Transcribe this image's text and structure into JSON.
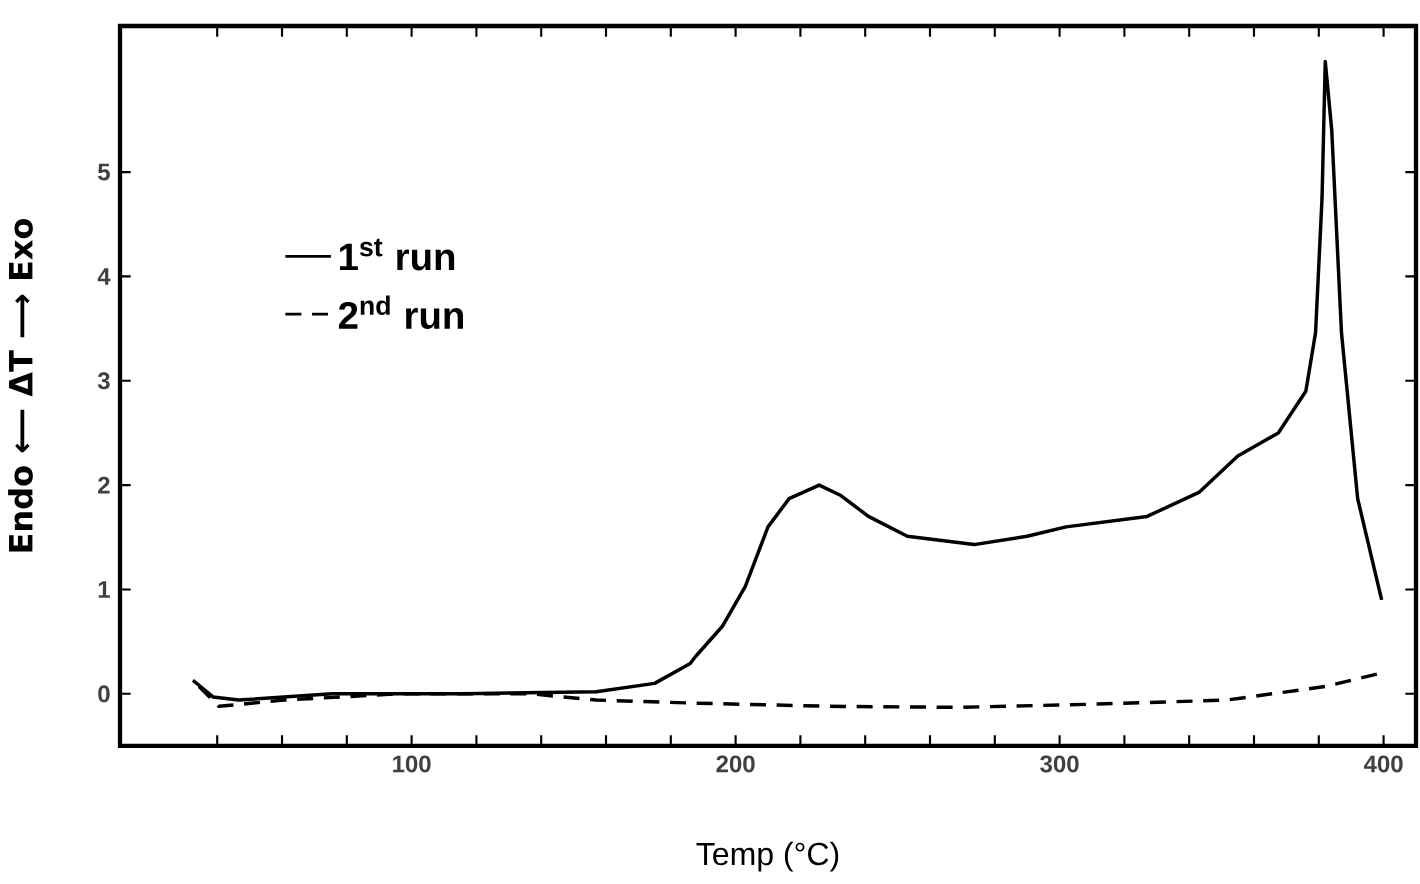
{
  "chart_data": {
    "type": "line",
    "xlabel": "Temp (°C)",
    "ylabel": "Endo ⟵ ΔT ⟶ Exo",
    "xlim": [
      10,
      410
    ],
    "ylim": [
      -0.5,
      6.4
    ],
    "xticks": [
      {
        "value": 40,
        "label": null
      },
      {
        "value": 60,
        "label": null
      },
      {
        "value": 80,
        "label": null
      },
      100,
      {
        "value": 120,
        "label": null
      },
      {
        "value": 140,
        "label": null
      },
      {
        "value": 160,
        "label": null
      },
      {
        "value": 180,
        "label": null
      },
      200,
      {
        "value": 220,
        "label": null
      },
      {
        "value": 240,
        "label": null
      },
      {
        "value": 260,
        "label": null
      },
      {
        "value": 280,
        "label": null
      },
      300,
      {
        "value": 320,
        "label": null
      },
      {
        "value": 340,
        "label": null
      },
      {
        "value": 360,
        "label": null
      },
      {
        "value": 380,
        "label": null
      },
      400
    ],
    "yticks": [
      0,
      1,
      2,
      3,
      4,
      5
    ],
    "grid": false,
    "legend": "top left",
    "series": [
      {
        "name": "1$^{st}$ run",
        "color": "#000000",
        "line_style": "solid",
        "x": [
          32.5,
          38.7,
          46.6,
          75.5,
          116,
          157,
          175,
          186,
          187.7,
          196,
          203,
          210,
          216.5,
          225.8,
          232.5,
          241,
          253,
          273.6,
          290,
          302,
          327,
          343,
          355,
          367.5,
          376,
          379,
          381,
          382,
          384,
          387,
          392,
          399.4
        ],
        "values": [
          0.13,
          -0.03,
          -0.06,
          0,
          0,
          0.02,
          0.1,
          0.29,
          0.36,
          0.65,
          1.03,
          1.6,
          1.87,
          2.0,
          1.9,
          1.7,
          1.51,
          1.43,
          1.51,
          1.6,
          1.7,
          1.93,
          2.28,
          2.5,
          2.9,
          3.46,
          4.75,
          6.06,
          5.4,
          3.46,
          1.87,
          0.9
        ]
      },
      {
        "name": "2$^{nd}$ run",
        "color": "#000000",
        "line_style": "dashed",
        "x": [
          34.4,
          40.5,
          60.7,
          95.7,
          136.8,
          157,
          187.7,
          228.8,
          269,
          310,
          351.5,
          382,
          399.4
        ],
        "values": [
          0.07,
          -0.12,
          -0.06,
          0,
          0,
          -0.06,
          -0.09,
          -0.12,
          -0.13,
          -0.1,
          -0.06,
          0.07,
          0.2
        ]
      }
    ]
  }
}
